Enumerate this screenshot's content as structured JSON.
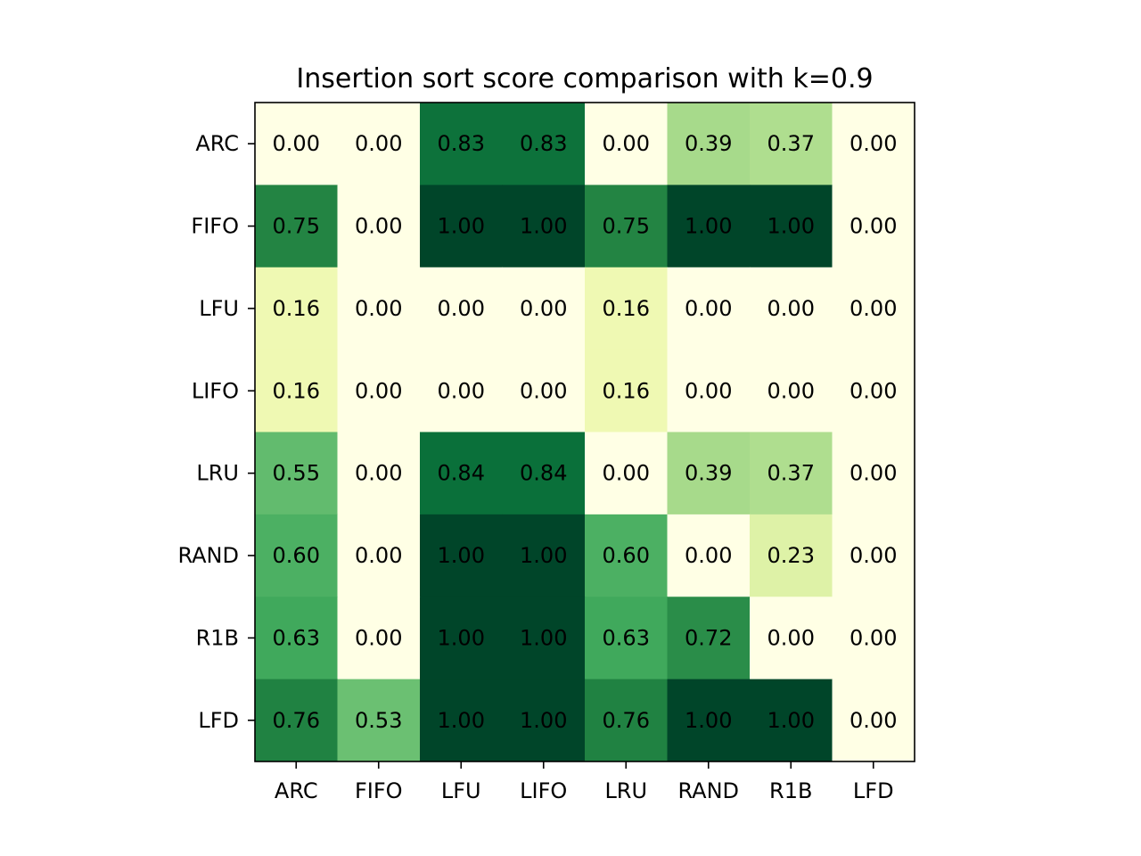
{
  "chart_data": {
    "type": "heatmap",
    "title": "Insertion sort score comparison with k=0.9",
    "x_categories": [
      "ARC",
      "FIFO",
      "LFU",
      "LIFO",
      "LRU",
      "RAND",
      "R1B",
      "LFD"
    ],
    "y_categories": [
      "ARC",
      "FIFO",
      "LFU",
      "LIFO",
      "LRU",
      "RAND",
      "R1B",
      "LFD"
    ],
    "values": [
      [
        0.0,
        0.0,
        0.83,
        0.83,
        0.0,
        0.39,
        0.37,
        0.0
      ],
      [
        0.75,
        0.0,
        1.0,
        1.0,
        0.75,
        1.0,
        1.0,
        0.0
      ],
      [
        0.16,
        0.0,
        0.0,
        0.0,
        0.16,
        0.0,
        0.0,
        0.0
      ],
      [
        0.16,
        0.0,
        0.0,
        0.0,
        0.16,
        0.0,
        0.0,
        0.0
      ],
      [
        0.55,
        0.0,
        0.84,
        0.84,
        0.0,
        0.39,
        0.37,
        0.0
      ],
      [
        0.6,
        0.0,
        1.0,
        1.0,
        0.6,
        0.0,
        0.23,
        0.0
      ],
      [
        0.63,
        0.0,
        1.0,
        1.0,
        0.63,
        0.72,
        0.0,
        0.0
      ],
      [
        0.76,
        0.53,
        1.0,
        1.0,
        0.76,
        1.0,
        1.0,
        0.0
      ]
    ],
    "value_format": "2 decimals",
    "colormap": "YlGn",
    "value_range": [
      0,
      1
    ],
    "grid": false
  }
}
